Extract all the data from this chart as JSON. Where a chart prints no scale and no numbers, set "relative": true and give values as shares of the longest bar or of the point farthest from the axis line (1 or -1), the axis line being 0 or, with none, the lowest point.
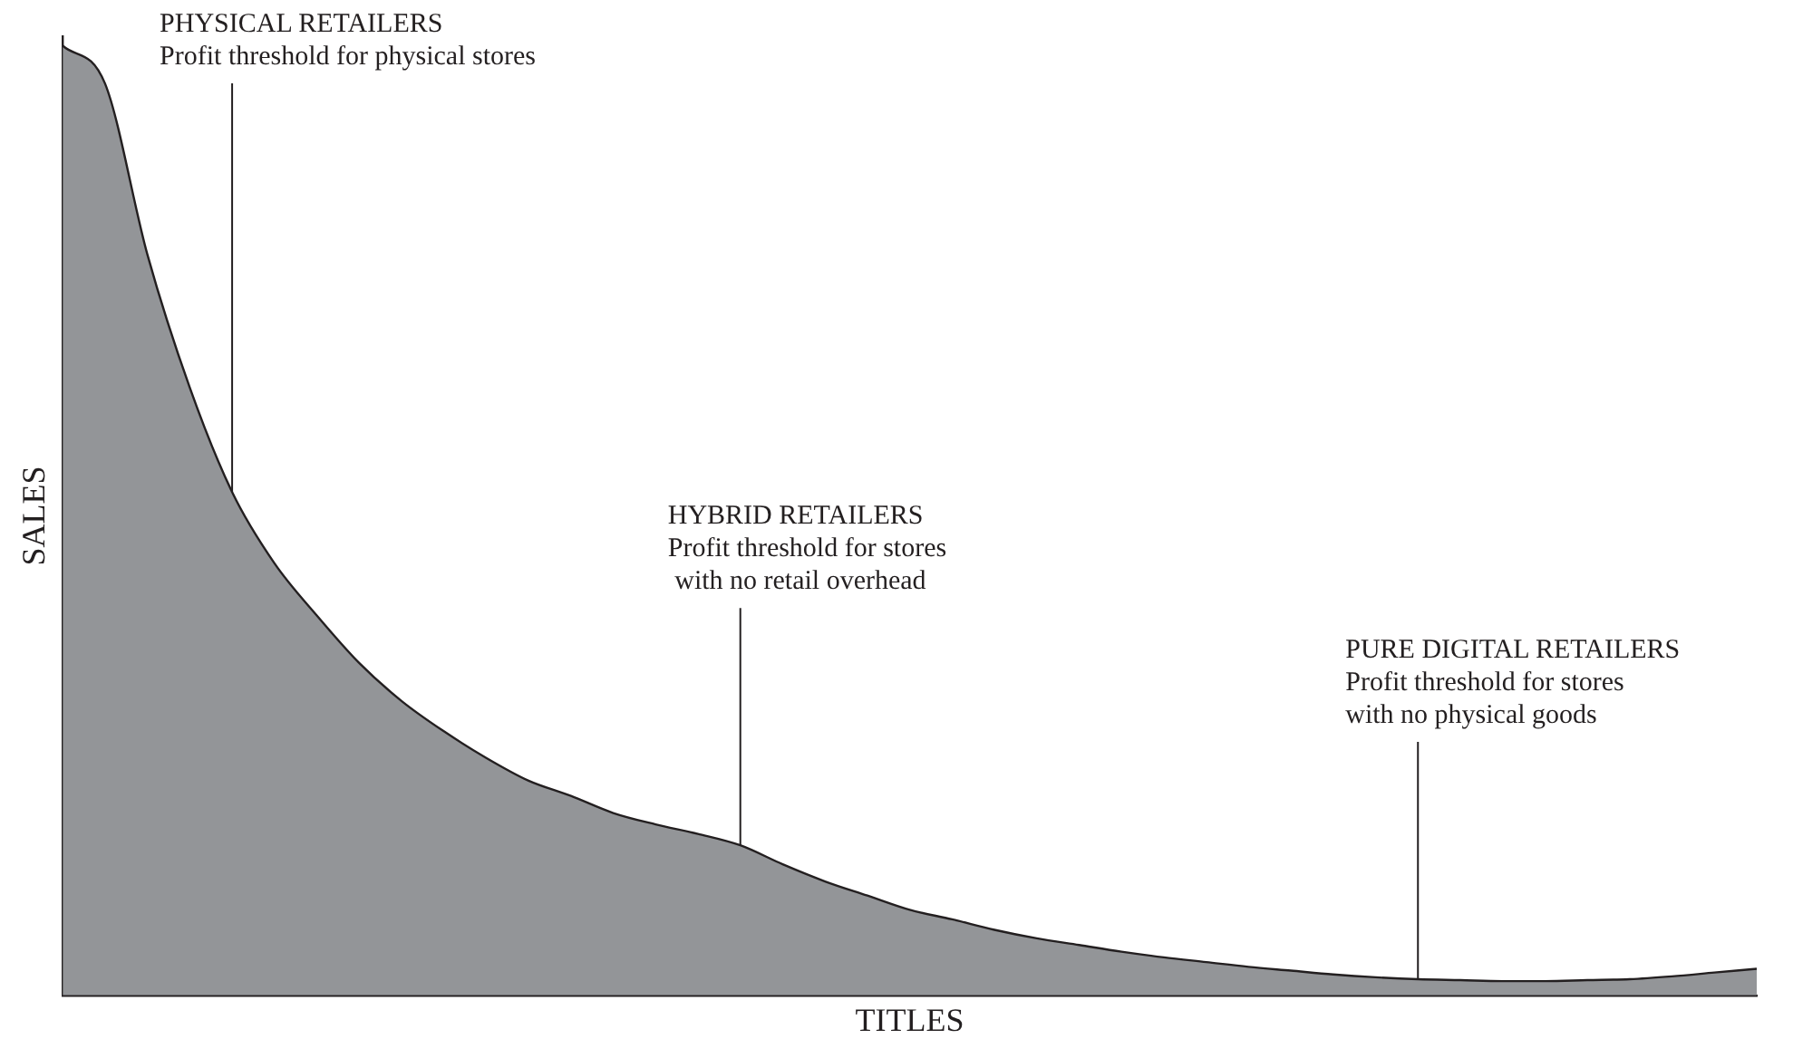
{
  "chart_data": {
    "type": "area",
    "relative": true,
    "xlabel": "TITLES",
    "ylabel": "SALES",
    "tick_labels": false,
    "marker": "none",
    "categories": [
      null,
      null,
      null,
      null,
      null,
      null,
      null,
      null,
      null,
      null,
      null,
      null,
      null,
      null,
      null,
      null,
      null,
      null,
      null,
      null,
      null,
      null,
      null,
      null,
      null,
      null,
      null,
      null,
      null,
      null,
      null,
      null,
      null,
      null,
      null,
      null,
      null,
      null,
      null,
      null,
      null
    ],
    "series": [
      {
        "color": "#939598",
        "values": [
          1,
          0.96,
          0.78,
          0.64,
          0.53,
          0.455,
          0.4,
          0.35,
          0.31,
          0.278,
          0.25,
          0.226,
          0.21,
          0.192,
          0.18,
          0.17,
          0.158,
          0.138,
          0.12,
          0.105,
          0.09,
          0.08,
          0.069,
          0.06,
          0.053,
          0.046,
          0.04,
          0.035,
          0.03,
          0.026,
          0.022,
          0.019,
          0.017,
          0.016,
          0.015,
          0.015,
          0.016,
          0.017,
          0.02,
          0.024,
          0.028
        ]
      }
    ],
    "annotations": [
      "PHYSICAL RETAILERS\nProfit threshold for physical stores",
      "HYBRID RETAILERS\nProfit threshold for stores\n with no retail overhead",
      "PURE DIGITAL RETAILERS\nProfit threshold for stores\nwith no physical goods"
    ]
  }
}
